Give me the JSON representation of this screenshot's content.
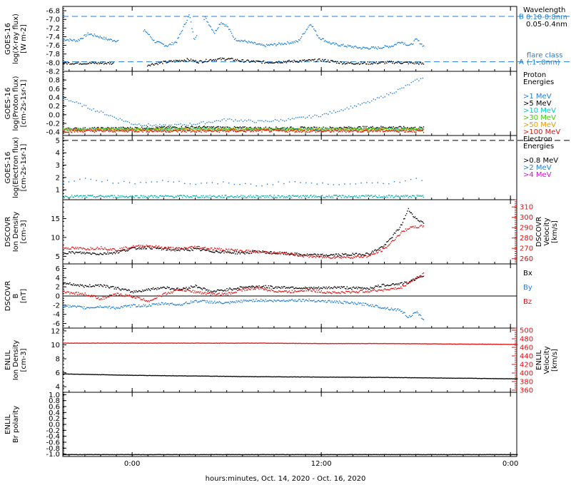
{
  "xaxis": {
    "label": "hours:minutes, Oct. 14, 2020 - Oct. 16, 2020",
    "ticks": [
      "0:00",
      "12:00",
      "0:00"
    ],
    "tick_hours": [
      0,
      12,
      24
    ],
    "range_hours": [
      -4.4,
      24.4
    ]
  },
  "panels": [
    {
      "id": "xray",
      "ylabel": [
        "GOES-16",
        "log(X-ray flux)",
        "[W m-2]"
      ],
      "ylim": [
        -8.2,
        -6.7
      ],
      "yticks": [
        "-6.8",
        "-7.0",
        "-7.2",
        "-7.4",
        "-7.6",
        "-7.8",
        "-8.0",
        "-8.2"
      ],
      "ytick_values": [
        -6.8,
        -7.0,
        -7.2,
        -7.4,
        -7.6,
        -7.8,
        -8.0,
        -8.2
      ],
      "hlines": [
        {
          "y": -6.93,
          "label": "B",
          "color": "#1f7fd6"
        },
        {
          "y": -7.98,
          "label": "A",
          "color": "#1f7fd6"
        }
      ],
      "legend": [
        {
          "text": "Wavelength",
          "color": "#000000"
        },
        {
          "text": "0.10-0.8nm",
          "color": "#1f7fd6"
        },
        {
          "text": "0.05-0.4nm",
          "color": "#000000"
        },
        {
          "text": "",
          "color": "#000000"
        },
        {
          "text": "flare class",
          "color": "#1f7fd6"
        },
        {
          "text": "(.1-.8nm)",
          "color": "#1f7fd6"
        }
      ]
    },
    {
      "id": "proton",
      "ylabel": [
        "GOES-16",
        "log(Proton flux)",
        "[cm-2s-1sr-1]"
      ],
      "ylim": [
        -0.48,
        1.0
      ],
      "yticks": [
        "0.8",
        "0.6",
        "0.4",
        "0.2",
        "0.0",
        "-0.2",
        "-0.4"
      ],
      "ytick_values": [
        0.8,
        0.6,
        0.4,
        0.2,
        0.0,
        -0.2,
        -0.4
      ],
      "legend": [
        {
          "text": "Proton",
          "color": "#000000"
        },
        {
          "text": "Energies",
          "color": "#000000"
        },
        {
          "text": "",
          "color": "#000000"
        },
        {
          "text": ">1 MeV",
          "color": "#1f7fd6"
        },
        {
          "text": ">5 MeV",
          "color": "#000000"
        },
        {
          "text": ">10 MeV",
          "color": "#00c8c8"
        },
        {
          "text": ">30 MeV",
          "color": "#44cc00"
        },
        {
          "text": ">50 MeV",
          "color": "#e0a000"
        },
        {
          "text": ">100 MeV",
          "color": "#e01010"
        }
      ]
    },
    {
      "id": "electron",
      "ylabel": [
        "GOES-16",
        "log(Electron flux)",
        "[cm-2s-1sr-1]"
      ],
      "ylim": [
        0.2,
        5.4
      ],
      "yticks": [
        "5",
        "4",
        "3",
        "2",
        "1"
      ],
      "ytick_values": [
        5,
        4,
        3,
        2,
        1
      ],
      "hlines": [
        {
          "y": 5.0,
          "label": "",
          "color": "#000000"
        }
      ],
      "legend": [
        {
          "text": "Electron",
          "color": "#000000"
        },
        {
          "text": "Energies",
          "color": "#000000"
        },
        {
          "text": "",
          "color": "#000000"
        },
        {
          "text": ">0.8 MeV",
          "color": "#000000"
        },
        {
          "text": ">2 MeV",
          "color": "#1f7fd6"
        },
        {
          "text": ">4 MeV",
          "color": "#d010d0"
        }
      ]
    },
    {
      "id": "dscovr_plasma",
      "ylabel": [
        "DSCOVR",
        "Ion Density",
        "[cm-3]"
      ],
      "ylim": [
        3,
        20
      ],
      "yticks": [
        "15",
        "10",
        "5"
      ],
      "ytick_values": [
        15,
        10,
        5
      ],
      "ylabel_right": [
        "DSCOVR",
        "Velocity",
        "[km/s]"
      ],
      "ylim_right": [
        255,
        317
      ],
      "yticks_right": [
        "310",
        "300",
        "290",
        "280",
        "270",
        "260"
      ],
      "ytick_values_right": [
        310,
        300,
        290,
        280,
        270,
        260
      ]
    },
    {
      "id": "dscovr_mag",
      "ylabel": [
        "DSCOVR",
        "B",
        "[nT]"
      ],
      "ylim": [
        -7,
        7
      ],
      "yticks": [
        "6",
        "4",
        "2",
        "0",
        "-2",
        "-4",
        "-6"
      ],
      "ytick_values": [
        6,
        4,
        2,
        0,
        -2,
        -4,
        -6
      ],
      "hlines": [
        {
          "y": 0,
          "label": "",
          "color": "#000000",
          "solid": true
        }
      ],
      "legend": [
        {
          "text": "Bx",
          "color": "#000000"
        },
        {
          "text": "",
          "color": "#000000"
        },
        {
          "text": "By",
          "color": "#1f7fd6"
        },
        {
          "text": "",
          "color": "#000000"
        },
        {
          "text": "Bz",
          "color": "#e01010"
        }
      ]
    },
    {
      "id": "enlil_plasma",
      "ylabel": [
        "ENLIL",
        "Ion Density",
        "[cm-3]"
      ],
      "ylim": [
        3.2,
        12.4
      ],
      "yticks": [
        "12",
        "10",
        "8",
        "6",
        "4"
      ],
      "ytick_values": [
        12,
        10,
        8,
        6,
        4
      ],
      "ylabel_right": [
        "ENLIL",
        "Velocity",
        "[km/s]"
      ],
      "ylim_right": [
        355,
        505
      ],
      "yticks_right": [
        "500",
        "480",
        "460",
        "440",
        "420",
        "400",
        "380",
        "360"
      ],
      "ytick_values_right": [
        500,
        480,
        460,
        440,
        420,
        400,
        380,
        360
      ]
    },
    {
      "id": "enlil_polarity",
      "ylabel": [
        "ENLIL",
        "Br polarity"
      ],
      "ylim": [
        -1.08,
        1.08
      ],
      "yticks": [
        "1.0",
        "0.8",
        "0.6",
        "0.4",
        "0.2",
        "0.0",
        "-0.2",
        "-0.4",
        "-0.6",
        "-0.8",
        "-1.0"
      ],
      "ytick_values": [
        1.0,
        0.8,
        0.6,
        0.4,
        0.2,
        0.0,
        -0.2,
        -0.4,
        -0.6,
        -0.8,
        -1.0
      ]
    }
  ],
  "chart_data": {
    "type": "scatter",
    "x_unit": "hours from 0:00 Oct. 15, 2020",
    "xlabel": "hours:minutes, Oct. 14, 2020 - Oct. 16, 2020",
    "panels": [
      {
        "panel": "xray",
        "series": [
          {
            "color": "#1f7fd6",
            "x": [
              -4.4,
              -3.5,
              -2.8,
              -2.2,
              -1.6,
              -0.6,
              0.8,
              1.4,
              2.2,
              2.8,
              3.6,
              3.9,
              4.6,
              5.2,
              5.6,
              6.0,
              6.5,
              7.2,
              8.3,
              9.5,
              10.5,
              11.3,
              11.8,
              12.6,
              13.5,
              14.5,
              15.5,
              16.5,
              17.0,
              17.6,
              18.0,
              18.5
            ],
            "y": [
              -7.45,
              -7.48,
              -7.32,
              -7.38,
              -7.45,
              -7.5,
              -7.25,
              -7.5,
              -7.6,
              -7.5,
              -6.88,
              -7.45,
              -6.95,
              -7.3,
              -7.05,
              -7.15,
              -7.45,
              -7.5,
              -7.6,
              -7.55,
              -7.5,
              -7.08,
              -7.4,
              -7.55,
              -7.6,
              -7.65,
              -7.65,
              -7.6,
              -7.5,
              -7.6,
              -7.45,
              -7.62
            ]
          },
          {
            "color": "#000000",
            "x": [
              -4.4,
              -3.0,
              -1.5,
              0.8,
              2.0,
              3.5,
              4.2,
              5.0,
              6.0,
              7.0,
              8.5,
              10.0,
              12.0,
              13.5,
              15.0,
              16.5,
              18.0,
              18.5
            ],
            "y": [
              -8.0,
              -8.0,
              -8.0,
              -8.05,
              -7.98,
              -7.92,
              -7.97,
              -7.92,
              -7.9,
              -7.95,
              -7.98,
              -7.96,
              -7.93,
              -8.0,
              -8.0,
              -7.98,
              -8.0,
              -8.02
            ]
          }
        ]
      },
      {
        "panel": "proton",
        "series": [
          {
            "color": "#1f7fd6",
            "x": [
              -4.4,
              -3.0,
              -1.5,
              0,
              2,
              4,
              6,
              8,
              10,
              12,
              13,
              14,
              15,
              16,
              17,
              18,
              18.5
            ],
            "y": [
              0.4,
              0.2,
              0.0,
              -0.2,
              -0.25,
              -0.2,
              -0.1,
              -0.15,
              -0.1,
              0.0,
              0.1,
              0.2,
              0.3,
              0.45,
              0.6,
              0.8,
              0.85
            ]
          },
          {
            "color": "#000000",
            "x": [
              -4.4,
              0,
              4,
              8,
              12,
              16,
              18.5
            ],
            "y": [
              -0.32,
              -0.3,
              -0.28,
              -0.3,
              -0.3,
              -0.28,
              -0.3
            ]
          },
          {
            "color": "#00c8c8",
            "x": [
              -4.4,
              0,
              4,
              8,
              12,
              16,
              18.5
            ],
            "y": [
              -0.33,
              -0.33,
              -0.33,
              -0.33,
              -0.33,
              -0.33,
              -0.33
            ]
          },
          {
            "color": "#44cc00",
            "x": [
              -4.4,
              0,
              4,
              8,
              12,
              16,
              18.5
            ],
            "y": [
              -0.32,
              -0.32,
              -0.31,
              -0.32,
              -0.32,
              -0.32,
              -0.32
            ]
          },
          {
            "color": "#e0a000",
            "x": [
              -4.4,
              0,
              4,
              8,
              12,
              16,
              18.5
            ],
            "y": [
              -0.34,
              -0.34,
              -0.34,
              -0.34,
              -0.34,
              -0.34,
              -0.34
            ]
          },
          {
            "color": "#e01010",
            "x": [
              -4.4,
              0,
              4,
              8,
              12,
              16,
              18.5
            ],
            "y": [
              -0.37,
              -0.36,
              -0.37,
              -0.36,
              -0.37,
              -0.36,
              -0.37
            ]
          }
        ]
      },
      {
        "panel": "electron",
        "series": [
          {
            "color": "#1f7fd6",
            "x": [
              -4.4,
              -3.0,
              -1.5,
              0,
              2,
              4,
              6,
              8,
              10,
              12,
              14,
              16,
              18,
              18.5
            ],
            "y": [
              1.5,
              2.0,
              1.7,
              1.6,
              1.8,
              1.5,
              1.6,
              1.4,
              1.7,
              1.5,
              1.6,
              1.5,
              2.0,
              1.6
            ]
          },
          {
            "color": "#00aaaa",
            "x": [
              -4.4,
              18.5
            ],
            "y": [
              0.5,
              0.5
            ]
          }
        ]
      },
      {
        "panel": "dscovr_plasma",
        "series": [
          {
            "name": "density",
            "color": "#000000",
            "x": [
              -4.4,
              -3.0,
              -2.0,
              -1.0,
              0,
              1,
              2,
              3,
              4,
              5,
              6,
              7,
              8,
              9,
              10,
              11,
              12,
              13,
              14,
              15,
              16,
              17,
              17.5,
              18,
              18.5
            ],
            "y": [
              6.2,
              6.0,
              5.8,
              6.2,
              7.2,
              7.5,
              7.0,
              6.8,
              7.0,
              6.5,
              6.2,
              6.0,
              6.4,
              6.0,
              5.8,
              5.5,
              5.4,
              5.5,
              5.6,
              5.8,
              8.0,
              13.0,
              17.5,
              15.0,
              14.0
            ]
          },
          {
            "name": "velocity",
            "axis": "right",
            "color": "#e01010",
            "x": [
              -4.4,
              -3.0,
              -2.0,
              -1.0,
              0,
              1,
              2,
              3,
              4,
              5,
              6,
              7,
              8,
              9,
              10,
              11,
              12,
              13,
              14,
              15,
              16,
              17,
              17.5,
              18,
              18.5
            ],
            "y": [
              271,
              270,
              271,
              269,
              272,
              273,
              271,
              270,
              272,
              270,
              269,
              268,
              267,
              266,
              265,
              263,
              262,
              262,
              262,
              263,
              270,
              285,
              290,
              291,
              292
            ]
          }
        ]
      },
      {
        "panel": "dscovr_mag",
        "series": [
          {
            "name": "Bx",
            "color": "#000000",
            "x": [
              -4.4,
              -3.0,
              -2.0,
              -1.0,
              0,
              1,
              2,
              3,
              4,
              5,
              6,
              7,
              8,
              9,
              10,
              11,
              12,
              13,
              14,
              15,
              16,
              17,
              17.5,
              18,
              18.5
            ],
            "y": [
              3.0,
              2.2,
              2.5,
              1.8,
              1.0,
              1.5,
              2.0,
              1.5,
              2.3,
              1.0,
              1.5,
              2.0,
              2.2,
              2.0,
              2.0,
              1.8,
              1.8,
              2.0,
              1.8,
              1.8,
              2.5,
              2.8,
              3.0,
              4.0,
              4.5
            ]
          },
          {
            "name": "By",
            "color": "#1f7fd6",
            "x": [
              -4.4,
              -3.0,
              -2.0,
              -1.0,
              0,
              1,
              2,
              3,
              4,
              5,
              6,
              7,
              8,
              9,
              10,
              11,
              12,
              13,
              14,
              15,
              16,
              17,
              17.5,
              18,
              18.5
            ],
            "y": [
              -2.0,
              -2.5,
              -2.2,
              -2.5,
              -2.0,
              -2.0,
              -1.5,
              -1.8,
              -1.0,
              -1.2,
              -1.5,
              -1.0,
              -0.8,
              -1.0,
              -0.8,
              -0.8,
              -1.0,
              -1.2,
              -1.5,
              -1.8,
              -2.5,
              -3.0,
              -4.5,
              -3.5,
              -5.0
            ]
          },
          {
            "name": "Bz",
            "color": "#e01010",
            "x": [
              -4.4,
              -3.0,
              -2.0,
              -1.0,
              0,
              1,
              2,
              3,
              4,
              5,
              6,
              7,
              8,
              9,
              10,
              11,
              12,
              13,
              14,
              15,
              16,
              17,
              17.5,
              18,
              18.5
            ],
            "y": [
              1.0,
              0.5,
              -0.5,
              0.5,
              0,
              -1.0,
              0.5,
              1.5,
              1.0,
              0.5,
              0.5,
              1.5,
              1.8,
              1.2,
              1.0,
              1.5,
              1.0,
              0.8,
              1.0,
              1.2,
              1.5,
              1.8,
              3.0,
              4.0,
              5.0
            ]
          }
        ]
      },
      {
        "panel": "enlil_plasma",
        "series": [
          {
            "name": "density",
            "color": "#000000",
            "x": [
              -4.4,
              0,
              4,
              8,
              12,
              16,
              20,
              24.4
            ],
            "y": [
              5.9,
              5.7,
              5.6,
              5.5,
              5.45,
              5.4,
              5.3,
              5.2
            ]
          },
          {
            "name": "velocity",
            "axis": "right",
            "color": "#e01010",
            "x": [
              -4.4,
              0,
              4,
              8,
              12,
              16,
              20,
              24.4
            ],
            "y": [
              471,
              471,
              471,
              471,
              470,
              470,
              469,
              468
            ]
          }
        ]
      },
      {
        "panel": "enlil_polarity",
        "series": [
          {
            "name": "polarity",
            "color": "#000000",
            "x": [
              -4.4,
              24.4
            ],
            "y": [
              -1.0,
              -1.0
            ]
          }
        ]
      }
    ]
  }
}
